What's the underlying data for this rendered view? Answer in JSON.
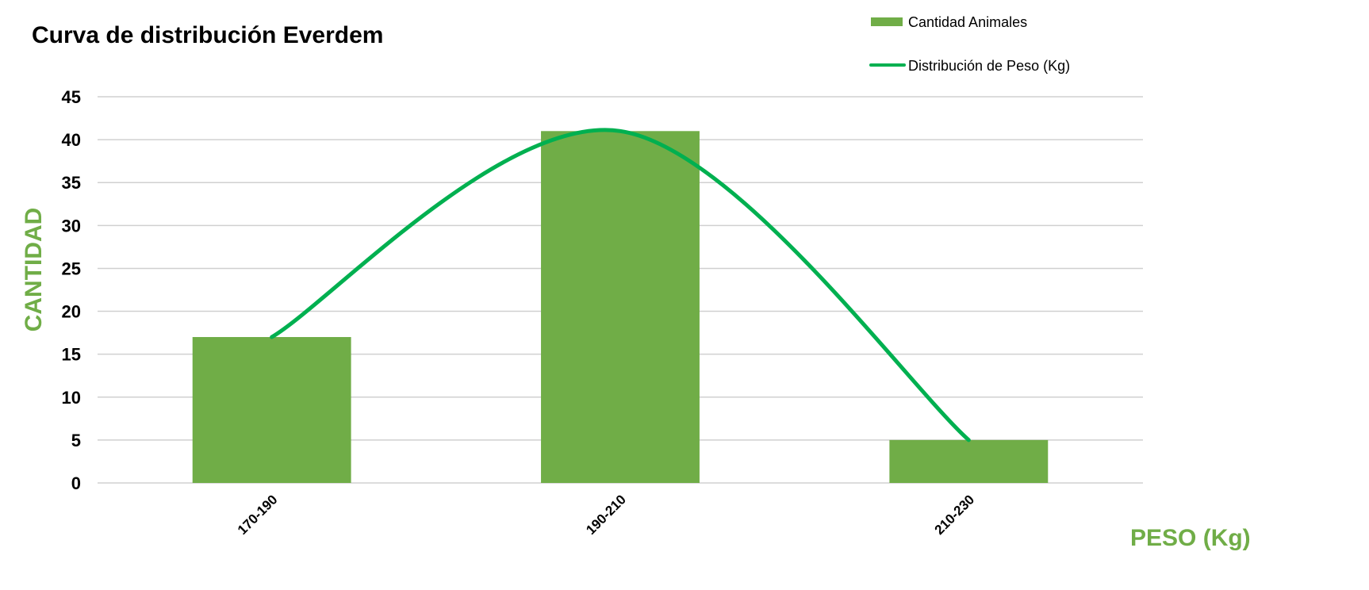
{
  "chart_data": {
    "type": "bar",
    "title": "Curva de distribución Everdem",
    "xlabel": "PESO (Kg)",
    "ylabel": "CANTIDAD",
    "categories": [
      "170-190",
      "190-210",
      "210-230"
    ],
    "series": [
      {
        "name": "Cantidad Animales",
        "type": "bar",
        "values": [
          17,
          41,
          5
        ],
        "color": "#70AD47"
      },
      {
        "name": "Distribución de Peso (Kg)",
        "type": "line",
        "smooth": true,
        "values": [
          17,
          41,
          5
        ],
        "color": "#00B050"
      }
    ],
    "ylim": [
      0,
      45
    ],
    "yticks": [
      0,
      5,
      10,
      15,
      20,
      25,
      30,
      35,
      40,
      45
    ],
    "grid": true,
    "legend_position": "top-right",
    "axis_label_color": "#70AD47"
  }
}
